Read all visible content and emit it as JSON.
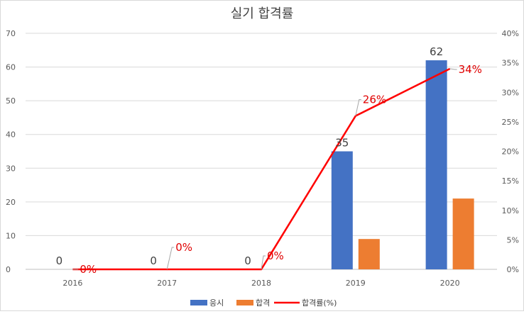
{
  "chart_data": {
    "type": "bar",
    "title": "실기 합격률",
    "categories": [
      "2016",
      "2017",
      "2018",
      "2019",
      "2020"
    ],
    "series": [
      {
        "name": "응시",
        "kind": "bar",
        "axis": "left",
        "color": "#4472c4",
        "values": [
          0,
          0,
          0,
          35,
          62
        ],
        "labels": [
          "0",
          "0",
          "0",
          "35",
          "62"
        ]
      },
      {
        "name": "합격",
        "kind": "bar",
        "axis": "left",
        "color": "#ed7d31",
        "values": [
          0,
          0,
          0,
          9,
          21
        ]
      },
      {
        "name": "합격률(%)",
        "kind": "line",
        "axis": "right",
        "color": "#ff0000",
        "values": [
          0,
          0,
          0,
          26,
          34
        ],
        "labels": [
          "0%",
          "0%",
          "0%",
          "26%",
          "34%"
        ]
      }
    ],
    "y_left": {
      "min": 0,
      "max": 70,
      "ticks": [
        "0",
        "10",
        "20",
        "30",
        "40",
        "50",
        "60",
        "70"
      ]
    },
    "y_right": {
      "min": 0,
      "max": 40,
      "ticks": [
        "0%",
        "5%",
        "10%",
        "15%",
        "20%",
        "25%",
        "30%",
        "35%",
        "40%"
      ]
    },
    "grid": true,
    "legend": "bottom"
  }
}
